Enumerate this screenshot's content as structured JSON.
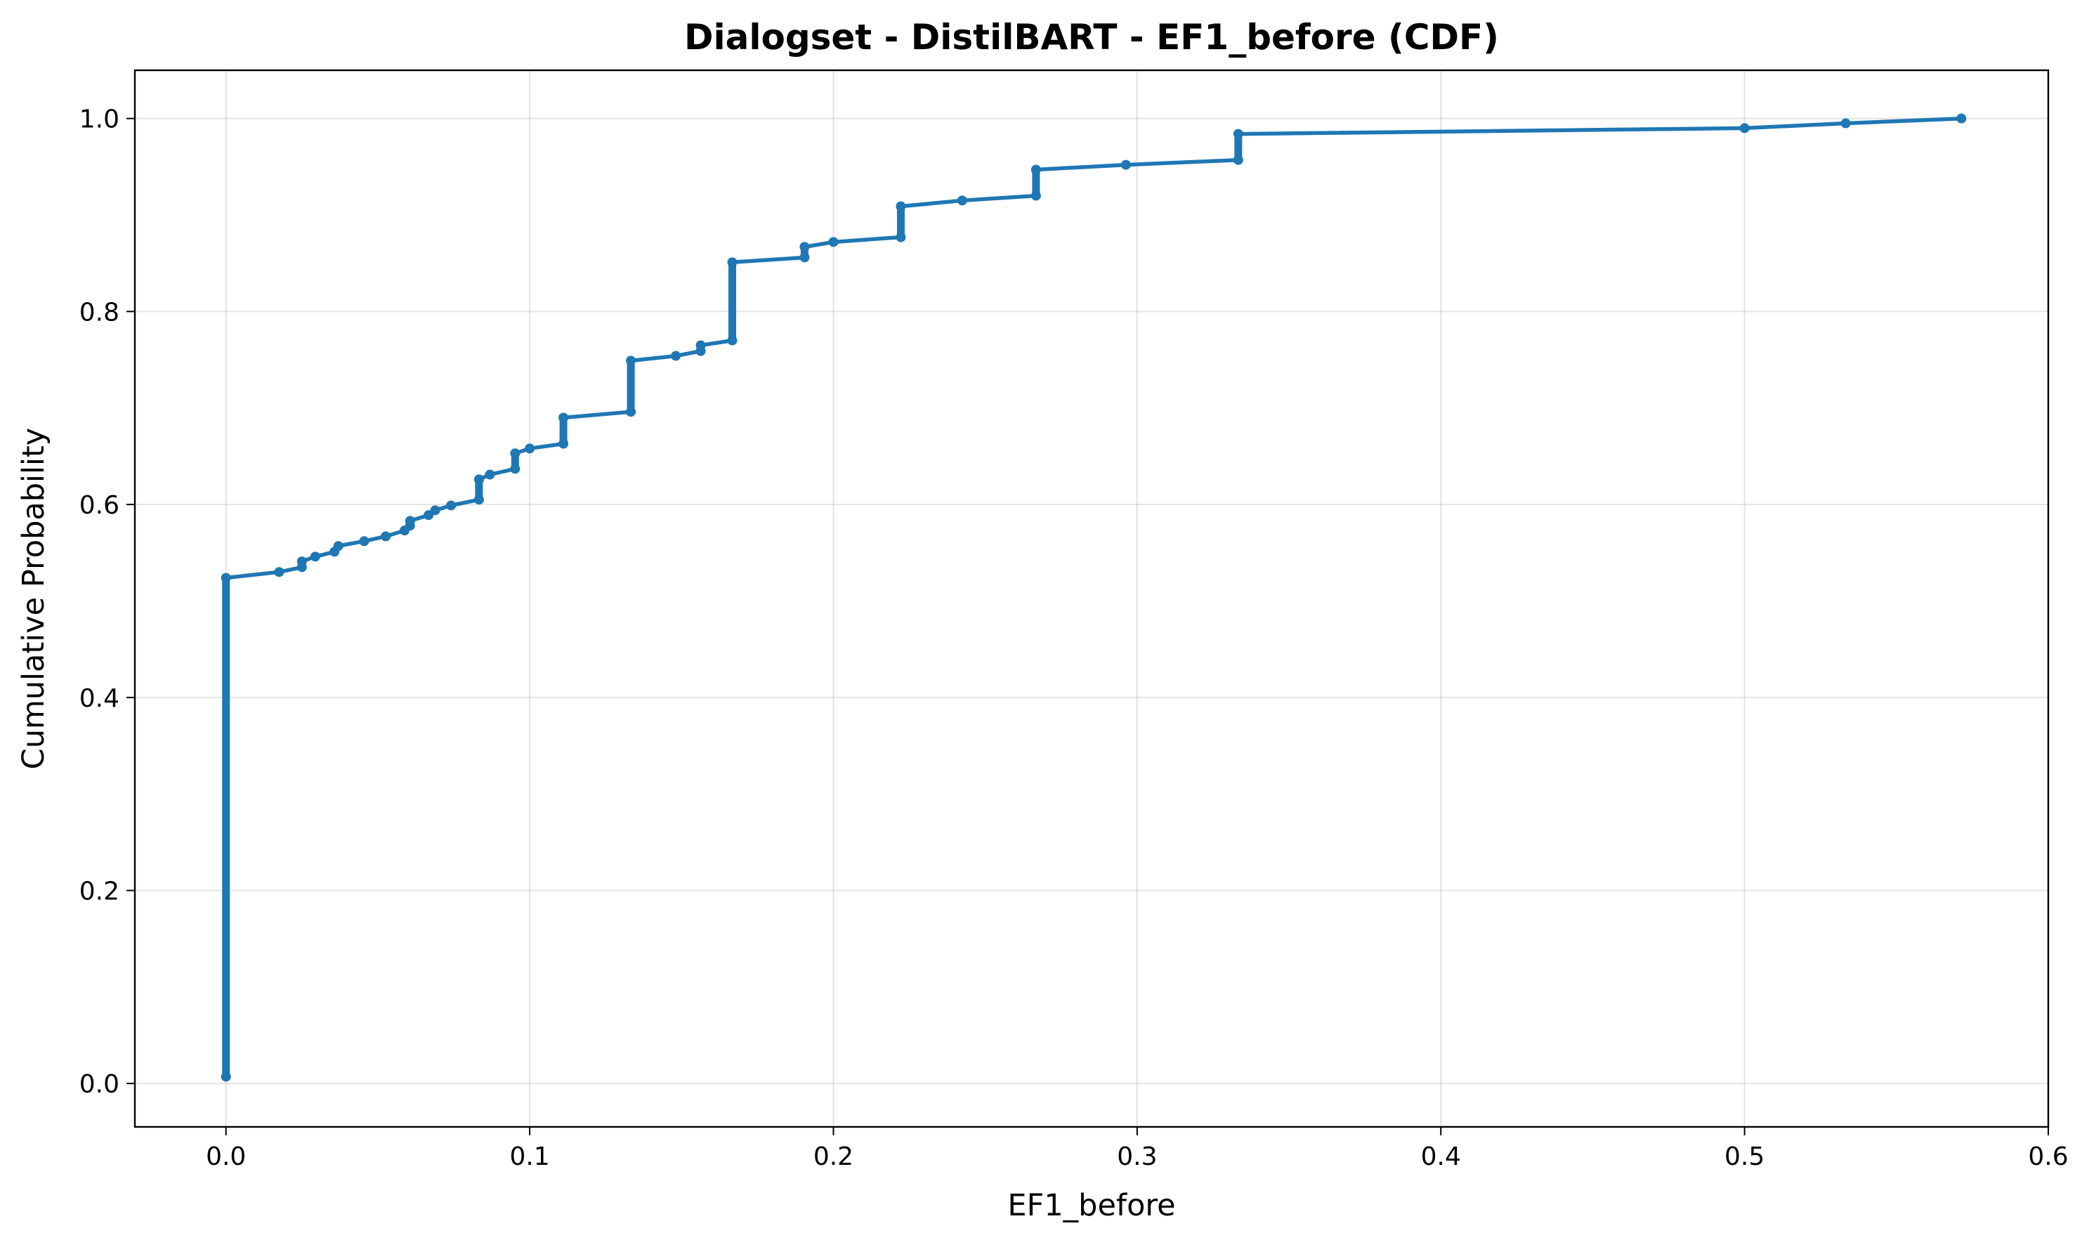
{
  "chart_data": {
    "type": "line",
    "title": "Dialogset - DistilBART - EF1_before (CDF)",
    "xlabel": "EF1_before",
    "ylabel": "Cumulative Probability",
    "xlim": [
      -0.03,
      0.6
    ],
    "ylim": [
      -0.045,
      1.05
    ],
    "xticks": [
      0.0,
      0.1,
      0.2,
      0.3,
      0.4,
      0.5,
      0.6
    ],
    "xtick_labels": [
      "0.0",
      "0.1",
      "0.2",
      "0.3",
      "0.4",
      "0.5",
      "0.6"
    ],
    "yticks": [
      0.0,
      0.2,
      0.4,
      0.6,
      0.8,
      1.0
    ],
    "ytick_labels": [
      "0.0",
      "0.2",
      "0.4",
      "0.6",
      "0.8",
      "1.0"
    ],
    "grid": true,
    "color": "#1f77b4",
    "series": [
      {
        "x_steps": [
          0.0,
          0.0175,
          0.025,
          0.0294,
          0.0357,
          0.037,
          0.0455,
          0.0526,
          0.0588,
          0.0606,
          0.0667,
          0.0689,
          0.0741,
          0.0833,
          0.0869,
          0.0952,
          0.1,
          0.1111,
          0.1333,
          0.1481,
          0.1563,
          0.1667,
          0.1905,
          0.2,
          0.2222,
          0.2424,
          0.2667,
          0.2963,
          0.3333,
          0.5,
          0.5333,
          0.5714
        ],
        "y_ranges": [
          [
            0.007,
            0.524
          ],
          [
            0.53,
            0.53
          ],
          [
            0.535,
            0.541
          ],
          [
            0.546,
            0.546
          ],
          [
            0.551,
            0.551
          ],
          [
            0.557,
            0.557
          ],
          [
            0.562,
            0.562
          ],
          [
            0.567,
            0.567
          ],
          [
            0.573,
            0.573
          ],
          [
            0.578,
            0.583
          ],
          [
            0.589,
            0.589
          ],
          [
            0.594,
            0.594
          ],
          [
            0.599,
            0.599
          ],
          [
            0.605,
            0.626
          ],
          [
            0.631,
            0.631
          ],
          [
            0.637,
            0.653
          ],
          [
            0.658,
            0.658
          ],
          [
            0.663,
            0.69
          ],
          [
            0.696,
            0.749
          ],
          [
            0.754,
            0.754
          ],
          [
            0.759,
            0.765
          ],
          [
            0.77,
            0.851
          ],
          [
            0.856,
            0.867
          ],
          [
            0.872,
            0.872
          ],
          [
            0.877,
            0.909
          ],
          [
            0.915,
            0.915
          ],
          [
            0.92,
            0.947
          ],
          [
            0.952,
            0.952
          ],
          [
            0.957,
            0.984
          ],
          [
            0.99,
            0.99
          ],
          [
            0.995,
            0.995
          ],
          [
            1.0,
            1.0
          ]
        ]
      }
    ]
  }
}
